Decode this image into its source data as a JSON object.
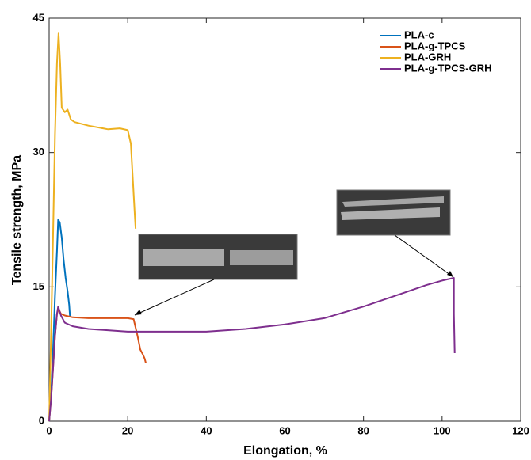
{
  "chart_data": {
    "type": "line",
    "xlabel": "Elongation, %",
    "ylabel": "Tensile strength, MPa",
    "xlim": [
      0,
      120
    ],
    "xticks": [
      0,
      20,
      40,
      60,
      80,
      100,
      120
    ],
    "ylim": [
      0,
      45
    ],
    "yticks": [
      0,
      15,
      30,
      45
    ],
    "legend": "upper right",
    "series": [
      {
        "name": "PLA-c",
        "color": "#0072BD",
        "x": [
          0,
          0.5,
          1,
          1.5,
          2,
          2.3,
          2.7,
          3.2,
          3.7,
          4.2,
          4.7,
          5.1,
          5.3
        ],
        "values": [
          0,
          3,
          8,
          14,
          19,
          22.5,
          22.2,
          20.5,
          18,
          16,
          14.5,
          13,
          11.7
        ]
      },
      {
        "name": "PLA-g-TPCS",
        "color": "#D95319",
        "x": [
          0,
          0.5,
          1,
          1.5,
          2,
          2.4,
          3,
          4,
          6,
          10,
          15,
          20,
          21.5,
          22.5,
          23.2,
          23.8,
          24.3,
          24.6
        ],
        "values": [
          0,
          2.5,
          6,
          9.5,
          12,
          12.5,
          12,
          11.8,
          11.6,
          11.5,
          11.5,
          11.5,
          11.4,
          9.5,
          8,
          7.5,
          7,
          6.5
        ]
      },
      {
        "name": "PLA-GRH",
        "color": "#EDB120",
        "x": [
          0,
          0.5,
          1,
          1.5,
          2,
          2.4,
          2.8,
          3.2,
          4,
          4.7,
          5.5,
          6.5,
          10,
          15,
          18,
          20,
          20.8,
          21.3,
          21.8,
          22
        ],
        "values": [
          0,
          10,
          21,
          32,
          40,
          43.3,
          40,
          35,
          34.5,
          34.8,
          33.7,
          33.4,
          33,
          32.6,
          32.7,
          32.5,
          31,
          27,
          23,
          21.5
        ]
      },
      {
        "name": "PLA-g-TPCS-GRH",
        "color": "#7E2F8E",
        "x": [
          0,
          0.5,
          1,
          1.5,
          2,
          2.3,
          3,
          4,
          6,
          10,
          20,
          30,
          40,
          50,
          60,
          70,
          80,
          90,
          96,
          100,
          103,
          103,
          103.2
        ],
        "values": [
          0,
          2.5,
          6,
          9.5,
          12,
          12.8,
          11.8,
          11,
          10.6,
          10.3,
          10,
          10,
          10,
          10.3,
          10.8,
          11.5,
          12.8,
          14.3,
          15.2,
          15.7,
          16,
          12,
          7.6
        ]
      }
    ]
  }
}
